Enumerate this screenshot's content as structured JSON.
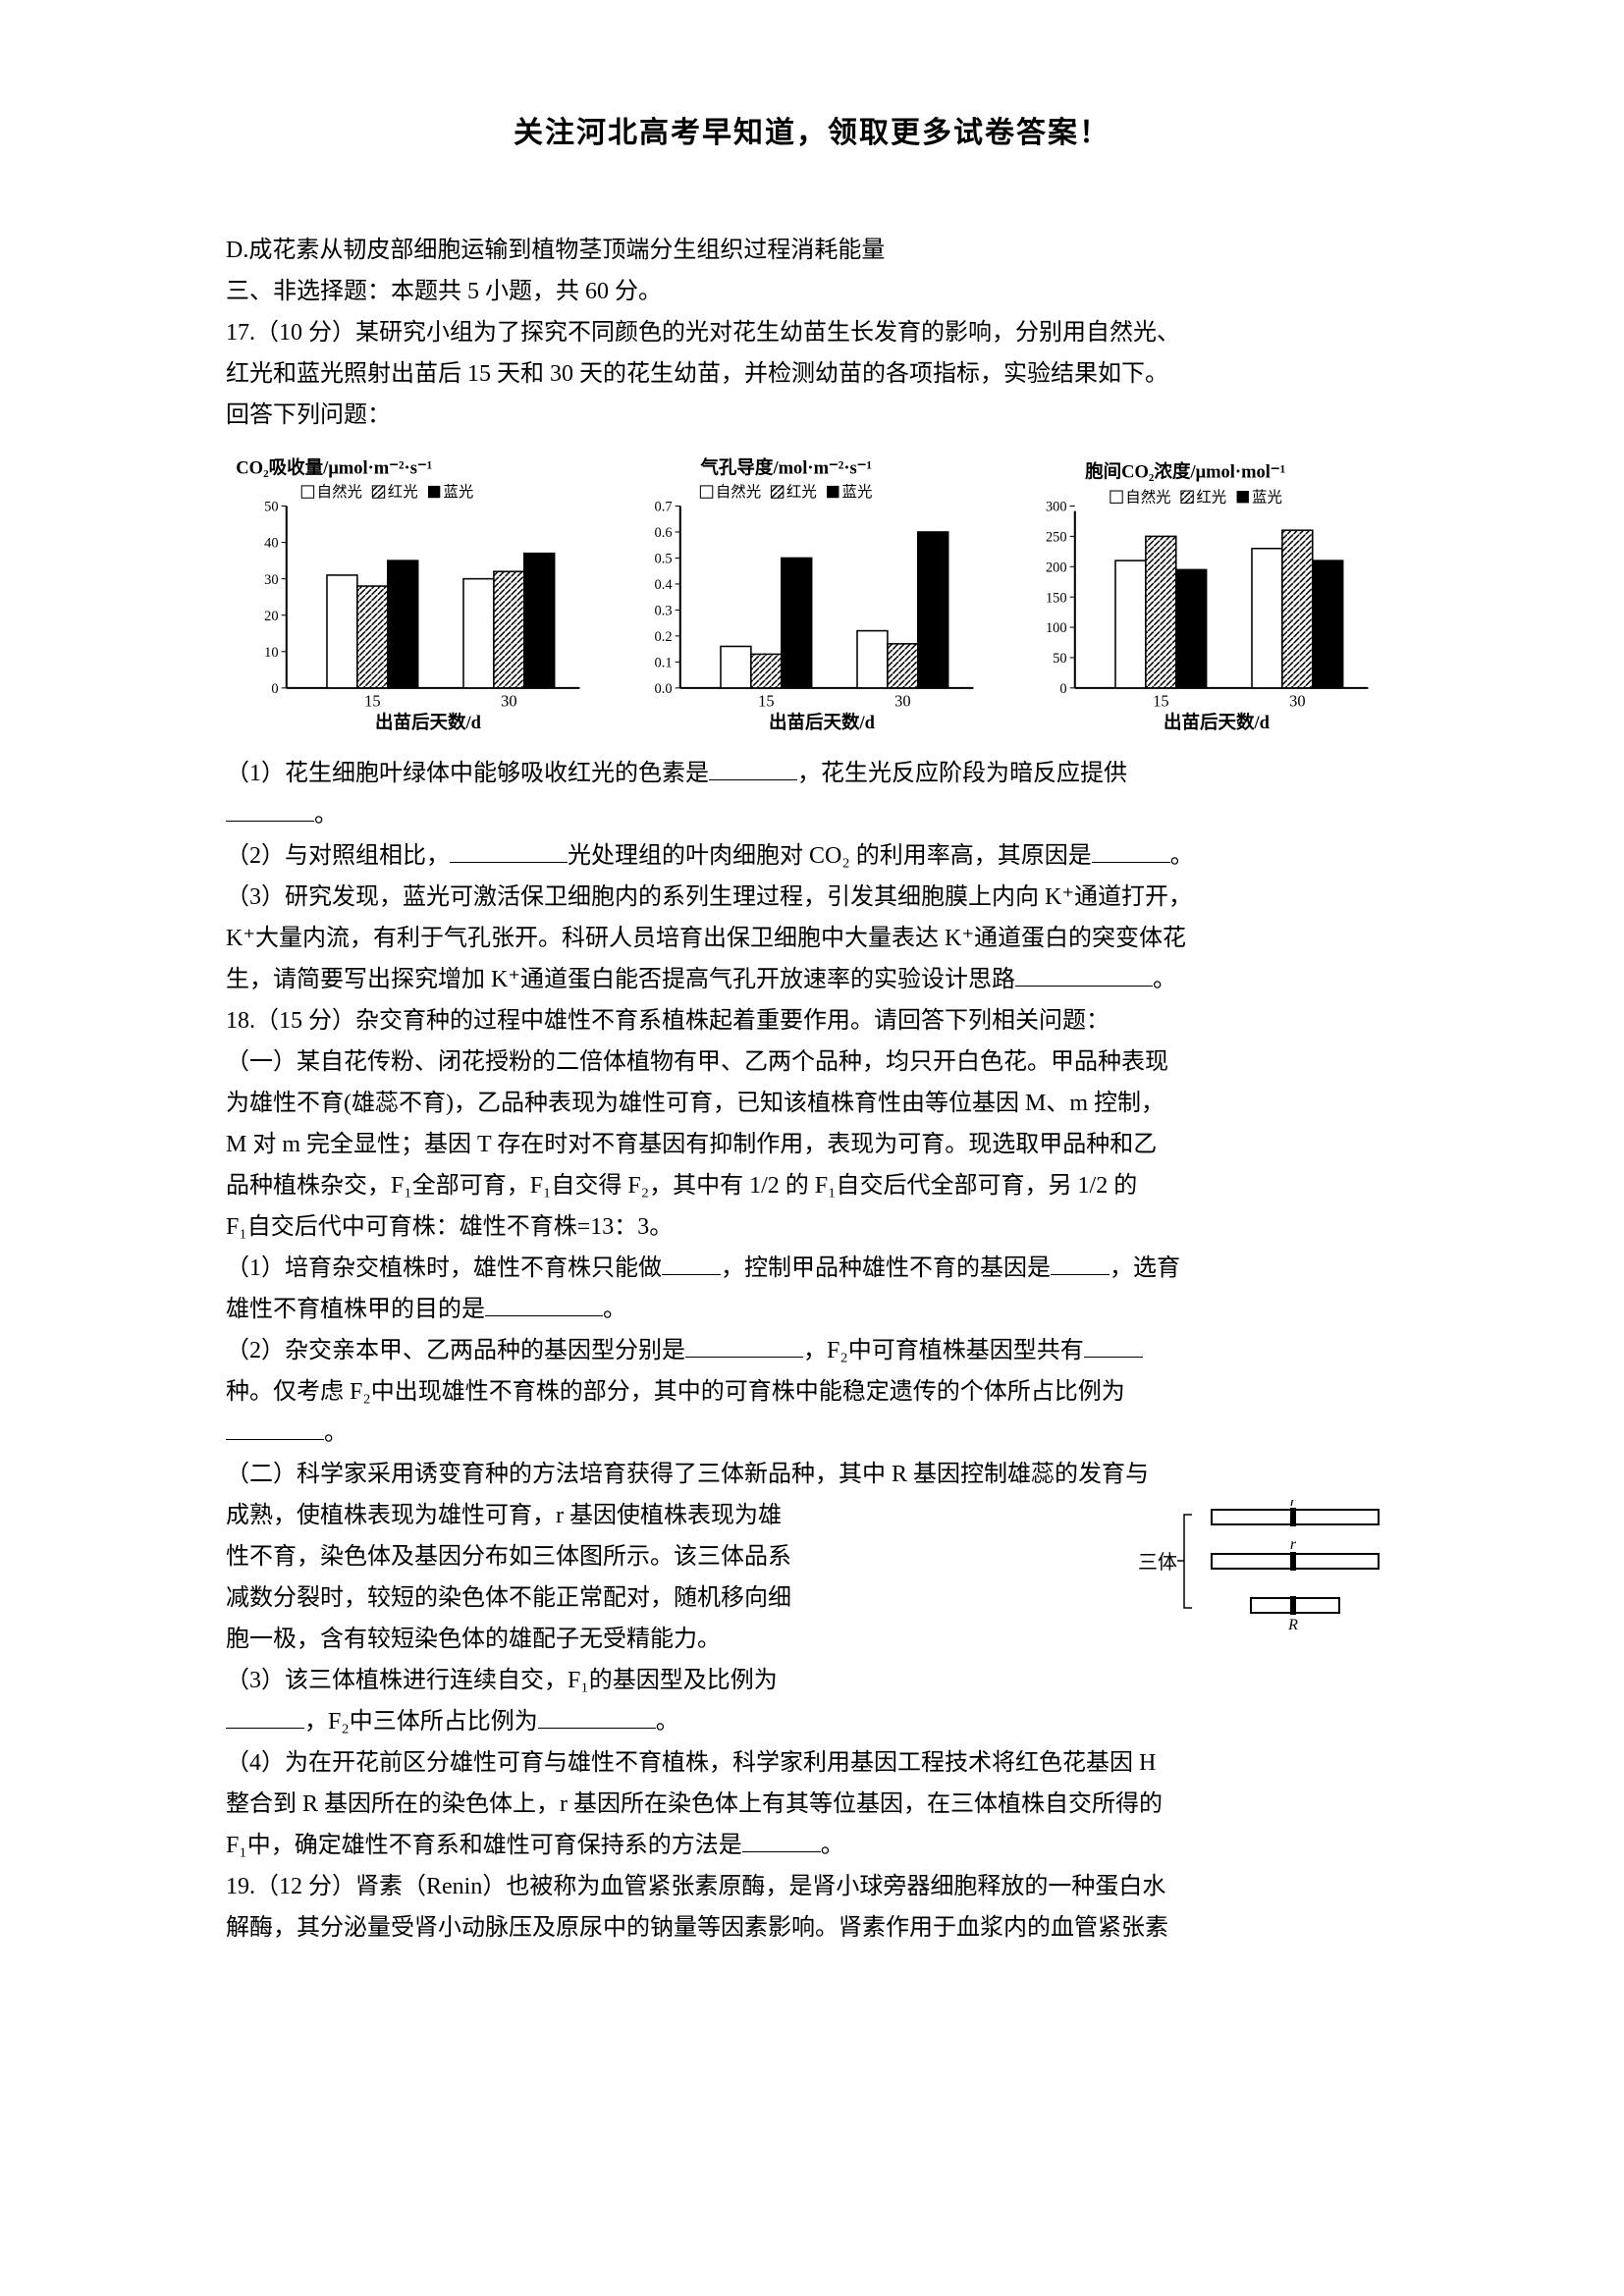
{
  "header": {
    "title": "关注河北高考早知道，领取更多试卷答案！"
  },
  "lines": {
    "d_option": "D.成花素从韧皮部细胞运输到植物茎顶端分生组织过程消耗能量",
    "section3_title": "三、非选择题：本题共 5 小题，共 60 分。",
    "q17_intro1": "17.（10 分）某研究小组为了探究不同颜色的光对花生幼苗生长发育的影响，分别用自然光、",
    "q17_intro2": "红光和蓝光照射出苗后 15 天和 30 天的花生幼苗，并检测幼苗的各项指标，实验结果如下。",
    "q17_intro3": "回答下列问题：",
    "q17_1a": "（1）花生细胞叶绿体中能够吸收红光的色素是",
    "q17_1b": "，花生光反应阶段为暗反应提供",
    "q17_blank_end": "。",
    "q17_2a": "（2）与对照组相比，",
    "q17_2b": "光处理组的叶肉细胞对 CO₂ 的利用率高，其原因是",
    "q17_2c": "。",
    "q17_3a": "（3）研究发现，蓝光可激活保卫细胞内的系列生理过程，引发其细胞膜上内向 K⁺通道打开，",
    "q17_3b": "K⁺大量内流，有利于气孔张开。科研人员培育出保卫细胞中大量表达 K⁺通道蛋白的突变体花",
    "q17_3c": "生，请简要写出探究增加 K⁺通道蛋白能否提高气孔开放速率的实验设计思路",
    "q17_3d": "。",
    "q18_intro": "18.（15 分）杂交育种的过程中雄性不育系植株起着重要作用。请回答下列相关问题：",
    "q18_pt1a": "（一）某自花传粉、闭花授粉的二倍体植物有甲、乙两个品种，均只开白色花。甲品种表现",
    "q18_pt1b": "为雄性不育(雄蕊不育)，乙品种表现为雄性可育，已知该植株育性由等位基因 M、m 控制，",
    "q18_pt1c": "M 对 m 完全显性；基因 T 存在时对不育基因有抑制作用，表现为可育。现选取甲品种和乙",
    "q18_pt1d": "品种植株杂交，F₁全部可育，F₁自交得 F₂，其中有 1/2 的 F₁自交后代全部可育，另 1/2 的",
    "q18_pt1e": "F₁自交后代中可育株：雄性不育株=13：3。",
    "q18_1a": "（1）培育杂交植株时，雄性不育株只能做",
    "q18_1b": "，控制甲品种雄性不育的基因是",
    "q18_1c": "，选育",
    "q18_1d": "雄性不育植株甲的目的是",
    "q18_1e": "。",
    "q18_2a": "（2）杂交亲本甲、乙两品种的基因型分别是",
    "q18_2b": "，F₂中可育植株基因型共有",
    "q18_2c": "种。仅考虑 F₂中出现雄性不育株的部分，其中的可育株中能稳定遗传的个体所占比例为",
    "q18_2d": "。",
    "q18_pt2a": "（二）科学家采用诱变育种的方法培育获得了三体新品种，其中 R 基因控制雄蕊的发育与",
    "q18_pt2b": "成熟，使植株表现为雄性可育，r 基因使植株表现为雄",
    "q18_pt2c": "性不育，染色体及基因分布如三体图所示。该三体品系",
    "q18_pt2d": "减数分裂时，较短的染色体不能正常配对，随机移向细",
    "q18_pt2e": "胞一极，含有较短染色体的雄配子无受精能力。",
    "q18_3a": "（3）该三体植株进行连续自交，F₁的基因型及比例为",
    "q18_3b": "，F₂中三体所占比例为",
    "q18_3c": "。",
    "q18_4a": "（4）为在开花前区分雄性可育与雄性不育植株，科学家利用基因工程技术将红色花基因 H",
    "q18_4b": "整合到 R 基因所在的染色体上，r 基因所在染色体上有其等位基因，在三体植株自交所得的",
    "q18_4c": "F₁中，确定雄性不育系和雄性可育保持系的方法是",
    "q18_4d": "。",
    "q19_a": "19.（12 分）肾素（Renin）也被称为血管紧张素原酶，是肾小球旁器细胞释放的一种蛋白水",
    "q19_b": "解酶，其分泌量受肾小动脉压及原尿中的钠量等因素影响。肾素作用于血浆内的血管紧张素"
  },
  "charts": {
    "chart1": {
      "title": "CO₂吸收量/μmol·m⁻²·s⁻¹",
      "legend": [
        "自然光",
        "红光",
        "蓝光"
      ],
      "legend_symbols": [
        "□",
        "▨",
        "■"
      ],
      "xlabel": "出苗后天数/d",
      "ymax": 50,
      "ytick_step": 10,
      "categories": [
        "15",
        "30"
      ],
      "values": [
        [
          31,
          28,
          35
        ],
        [
          30,
          32,
          37
        ]
      ],
      "colors": [
        "#ffffff",
        "#888888",
        "#000000"
      ],
      "patterns": [
        "none",
        "hatch",
        "solid"
      ],
      "border_color": "#000000"
    },
    "chart2": {
      "title": "气孔导度/mol·m⁻²·s⁻¹",
      "legend": [
        "自然光",
        "红光",
        "蓝光"
      ],
      "legend_symbols": [
        "□",
        "▨",
        "■"
      ],
      "xlabel": "出苗后天数/d",
      "ymax": 0.7,
      "ytick_step": 0.1,
      "categories": [
        "15",
        "30"
      ],
      "values": [
        [
          0.16,
          0.13,
          0.5
        ],
        [
          0.22,
          0.17,
          0.6
        ]
      ],
      "colors": [
        "#ffffff",
        "#888888",
        "#000000"
      ],
      "patterns": [
        "none",
        "hatch",
        "solid"
      ],
      "border_color": "#000000"
    },
    "chart3": {
      "title": "胞间CO₂浓度/μmol·mol⁻¹",
      "legend": [
        "自然光",
        "红光",
        "蓝光"
      ],
      "legend_symbols": [
        "□",
        "▨",
        "■"
      ],
      "xlabel": "出苗后天数/d",
      "ymax": 300,
      "ytick_step": 50,
      "categories": [
        "15",
        "30"
      ],
      "values": [
        [
          210,
          250,
          195
        ],
        [
          230,
          260,
          210
        ]
      ],
      "colors": [
        "#ffffff",
        "#888888",
        "#000000"
      ],
      "patterns": [
        "none",
        "hatch",
        "solid"
      ],
      "border_color": "#000000"
    }
  },
  "trisome": {
    "label": "三体",
    "genes_top": "r",
    "genes_mid": "r",
    "genes_bottom": "R"
  }
}
